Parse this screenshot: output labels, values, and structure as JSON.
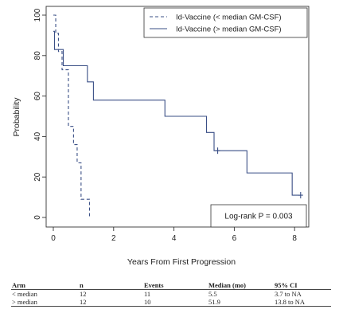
{
  "chart_data": {
    "type": "line",
    "step": true,
    "xlabel": "Years From First Progression",
    "ylabel": "Probability",
    "xlim": [
      0,
      8.6
    ],
    "ylim": [
      0,
      100
    ],
    "xticks": [
      0,
      2,
      4,
      6,
      8
    ],
    "yticks": [
      0,
      20,
      40,
      60,
      80,
      100
    ],
    "legend_position": "top-right",
    "series": [
      {
        "name": "Id-Vaccine (< median GM-CSF)",
        "style": "dashed",
        "color": "#3a4f86",
        "x": [
          0,
          0.08,
          0.17,
          0.29,
          0.5,
          0.67,
          0.79,
          0.92,
          1.17,
          1.2
        ],
        "y": [
          100,
          91,
          82,
          73,
          45,
          36,
          27,
          9,
          9,
          0
        ],
        "censored": []
      },
      {
        "name": "Id-Vaccine (> median GM-CSF)",
        "style": "solid",
        "color": "#3a4f86",
        "x": [
          0,
          0.04,
          0.33,
          1.13,
          1.33,
          3.7,
          5.08,
          5.33,
          6.42,
          7.92,
          8.2
        ],
        "y": [
          92,
          83,
          75,
          67,
          58,
          50,
          42,
          33,
          22,
          11,
          11
        ],
        "censored": [
          {
            "x": 5.45,
            "y": 33
          },
          {
            "x": 8.2,
            "y": 11
          }
        ]
      }
    ],
    "annotation": "Log-rank P = 0.003"
  },
  "table": {
    "headers": [
      "Arm",
      "n",
      "Events",
      "Median (mo)",
      "95% CI"
    ],
    "rows": [
      [
        "< median",
        "12",
        "11",
        "5.5",
        "3.7 to NA"
      ],
      [
        "> median",
        "12",
        "10",
        "51.9",
        "13.8 to NA"
      ]
    ]
  }
}
